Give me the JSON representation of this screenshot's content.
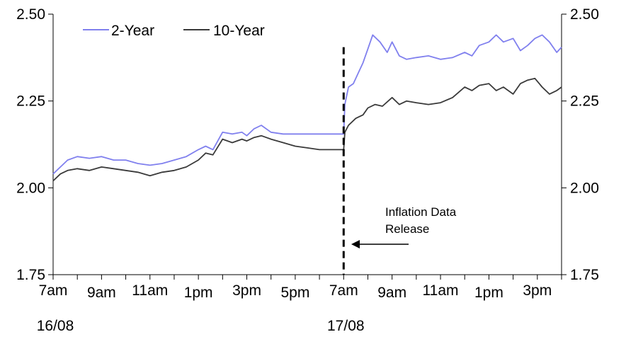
{
  "chart_data": {
    "type": "line",
    "title": "",
    "xlabel": "",
    "ylabel": "",
    "ylim": [
      1.75,
      2.5
    ],
    "y_ticks": [
      1.75,
      2.0,
      2.25,
      2.5
    ],
    "y_tick_labels": [
      "1.75",
      "2.00",
      "2.25",
      "2.50"
    ],
    "x_range": [
      0,
      21
    ],
    "x_ticks": [
      {
        "x": 0,
        "label": "7am"
      },
      {
        "x": 2,
        "label": "9am"
      },
      {
        "x": 4,
        "label": "11am"
      },
      {
        "x": 6,
        "label": "1pm"
      },
      {
        "x": 8,
        "label": "3pm"
      },
      {
        "x": 10,
        "label": "5pm"
      },
      {
        "x": 12,
        "label": "7am"
      },
      {
        "x": 14,
        "label": "9am"
      },
      {
        "x": 16,
        "label": "11am"
      },
      {
        "x": 18,
        "label": "1pm"
      },
      {
        "x": 20,
        "label": "3pm"
      }
    ],
    "date_labels": [
      {
        "x": 0,
        "label": "16/08"
      },
      {
        "x": 12,
        "label": "17/08"
      }
    ],
    "legend_position": "top-left",
    "series": [
      {
        "name": "2-Year",
        "color": "#8080ee",
        "x": [
          0,
          0.3,
          0.6,
          1,
          1.5,
          2,
          2.5,
          3,
          3.5,
          4,
          4.5,
          5,
          5.5,
          6,
          6.3,
          6.6,
          7,
          7.4,
          7.8,
          8,
          8.3,
          8.6,
          9,
          9.5,
          10,
          10.5,
          11,
          11.5,
          12,
          12.05,
          12.2,
          12.4,
          12.6,
          12.8,
          13,
          13.2,
          13.5,
          13.8,
          14,
          14.3,
          14.6,
          15,
          15.5,
          16,
          16.5,
          17,
          17.3,
          17.6,
          18,
          18.3,
          18.6,
          19,
          19.3,
          19.6,
          19.9,
          20.2,
          20.5,
          20.8,
          21
        ],
        "values": [
          2.04,
          2.06,
          2.08,
          2.09,
          2.085,
          2.09,
          2.08,
          2.08,
          2.07,
          2.065,
          2.07,
          2.08,
          2.09,
          2.11,
          2.12,
          2.11,
          2.16,
          2.155,
          2.16,
          2.15,
          2.17,
          2.18,
          2.16,
          2.155,
          2.155,
          2.155,
          2.155,
          2.155,
          2.155,
          2.24,
          2.29,
          2.3,
          2.33,
          2.36,
          2.4,
          2.44,
          2.42,
          2.39,
          2.42,
          2.38,
          2.37,
          2.375,
          2.38,
          2.37,
          2.375,
          2.39,
          2.38,
          2.41,
          2.42,
          2.44,
          2.42,
          2.43,
          2.395,
          2.41,
          2.43,
          2.44,
          2.42,
          2.39,
          2.405
        ]
      },
      {
        "name": "10-Year",
        "color": "#3a3a3a",
        "x": [
          0,
          0.3,
          0.6,
          1,
          1.5,
          2,
          2.5,
          3,
          3.5,
          4,
          4.5,
          5,
          5.5,
          6,
          6.3,
          6.6,
          7,
          7.4,
          7.8,
          8,
          8.3,
          8.6,
          9,
          9.5,
          10,
          10.5,
          11,
          11.5,
          12,
          12.05,
          12.2,
          12.5,
          12.8,
          13,
          13.3,
          13.6,
          14,
          14.3,
          14.6,
          15,
          15.5,
          16,
          16.5,
          17,
          17.3,
          17.6,
          18,
          18.3,
          18.6,
          19,
          19.3,
          19.6,
          19.9,
          20.2,
          20.5,
          20.8,
          21
        ],
        "values": [
          2.02,
          2.04,
          2.05,
          2.055,
          2.05,
          2.06,
          2.055,
          2.05,
          2.045,
          2.035,
          2.045,
          2.05,
          2.06,
          2.08,
          2.1,
          2.095,
          2.14,
          2.13,
          2.14,
          2.135,
          2.145,
          2.15,
          2.14,
          2.13,
          2.12,
          2.115,
          2.11,
          2.11,
          2.11,
          2.16,
          2.18,
          2.2,
          2.21,
          2.23,
          2.24,
          2.235,
          2.26,
          2.24,
          2.25,
          2.245,
          2.24,
          2.245,
          2.26,
          2.29,
          2.28,
          2.295,
          2.3,
          2.28,
          2.29,
          2.27,
          2.3,
          2.31,
          2.315,
          2.29,
          2.27,
          2.28,
          2.29
        ]
      }
    ],
    "event_line": {
      "x": 12,
      "label_line1": "Inflation Data",
      "label_line2": "Release"
    }
  }
}
